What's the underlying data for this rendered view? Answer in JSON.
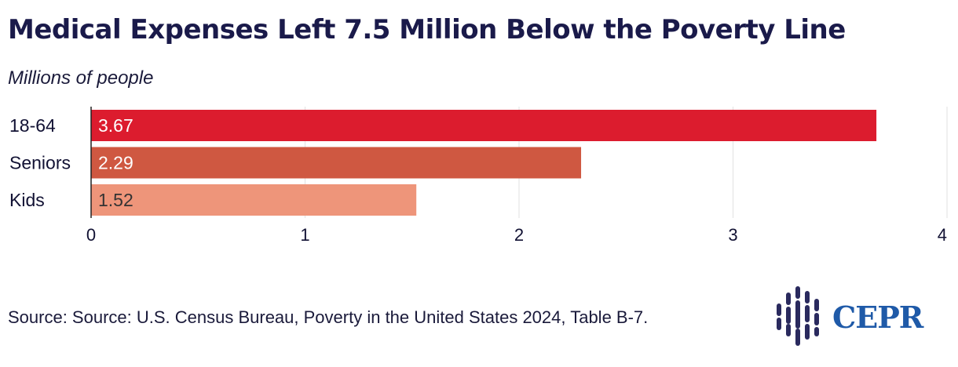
{
  "chart_data": {
    "type": "bar",
    "orientation": "horizontal",
    "title": "Medical Expenses Left 7.5 Million Below the Poverty Line",
    "subtitle": "Millions of people",
    "categories": [
      "18-64",
      "Seniors",
      "Kids"
    ],
    "values": [
      3.67,
      2.29,
      1.52
    ],
    "value_labels": [
      "3.67",
      "2.29",
      "1.52"
    ],
    "bar_colors": [
      "#dc1c2e",
      "#cf5841",
      "#ee957a"
    ],
    "label_colors": [
      "#ffffff",
      "#ffffff",
      "#333333"
    ],
    "xlim": [
      0,
      4
    ],
    "x_ticks": [
      0,
      1,
      2,
      3,
      4
    ],
    "x_tick_labels": [
      "0",
      "1",
      "2",
      "3",
      "4"
    ],
    "grid": true,
    "source": "Source: Source: U.S. Census Bureau, Poverty in the United States 2024, Table B-7."
  },
  "logo": {
    "text": "CEPR",
    "colors": {
      "bars": "#2a2a5e",
      "text": "#1f5aa8"
    }
  }
}
